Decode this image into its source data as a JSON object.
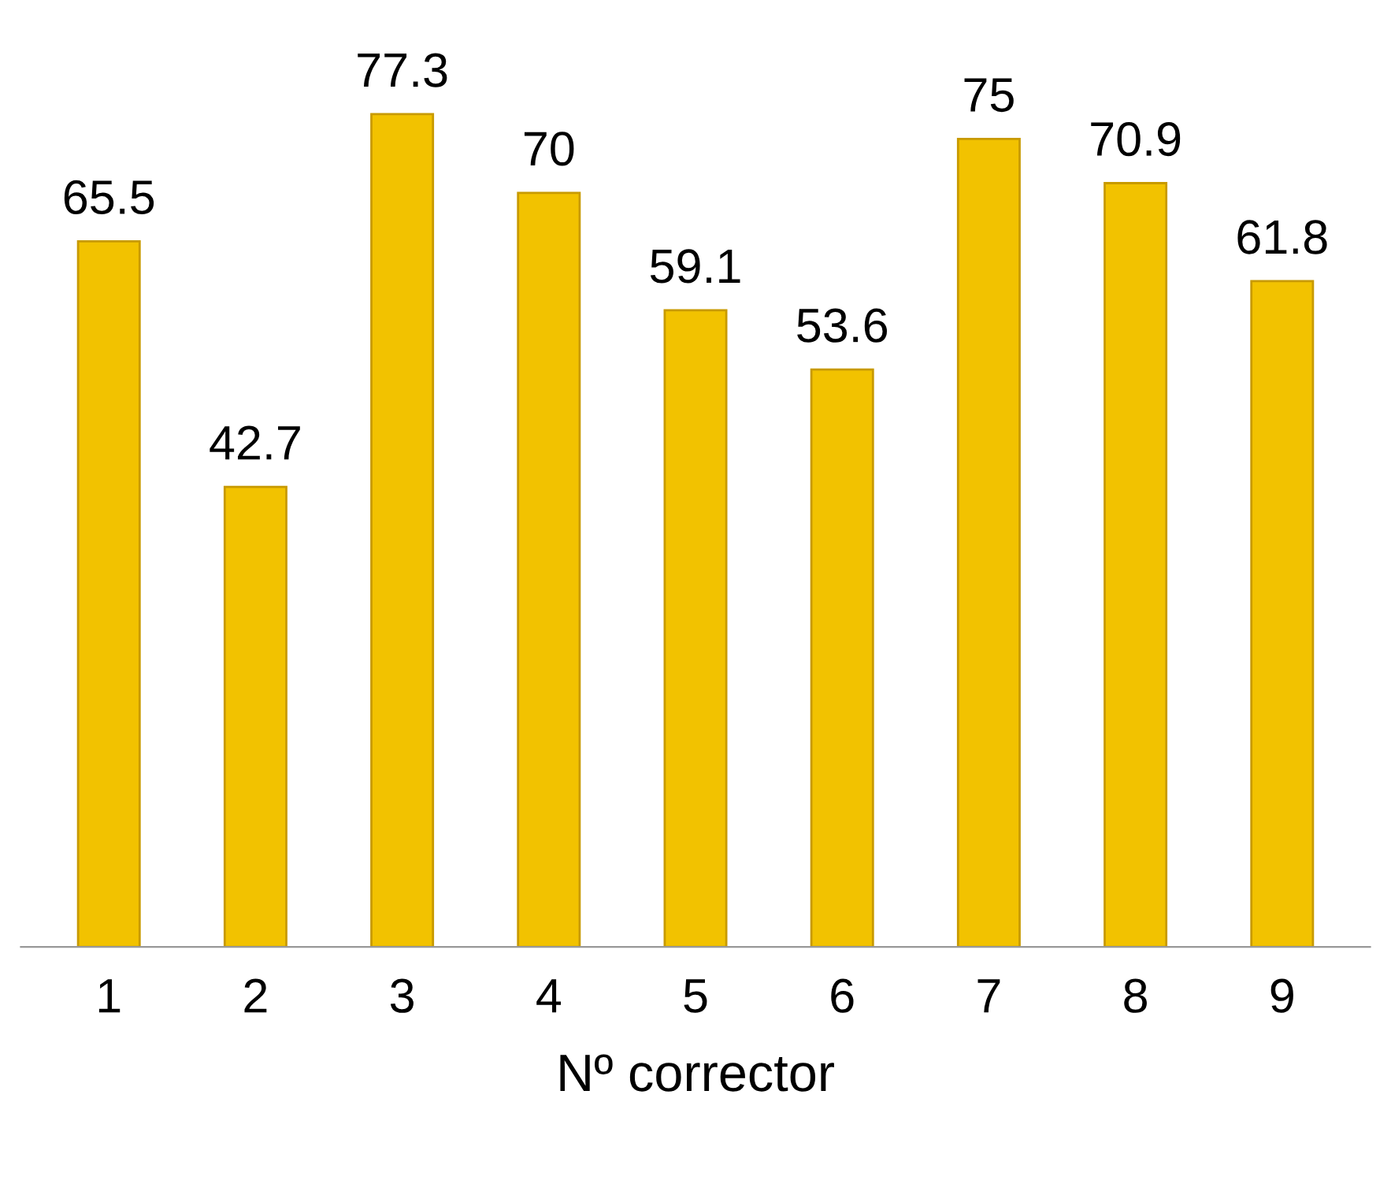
{
  "chart_data": {
    "type": "bar",
    "xlabel": "Nº corrector",
    "categories": [
      "1",
      "2",
      "3",
      "4",
      "5",
      "6",
      "7",
      "8",
      "9"
    ],
    "values": [
      65.5,
      42.7,
      77.3,
      70,
      59.1,
      53.6,
      75,
      70.9,
      61.8
    ],
    "color": "#f2c200",
    "data_labels": true,
    "grid": false,
    "legend": false,
    "tick_labels": "x"
  }
}
